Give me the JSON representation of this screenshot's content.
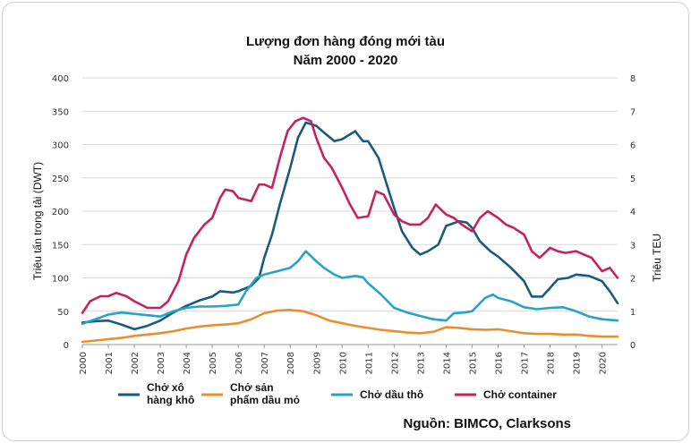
{
  "chart_data": {
    "type": "line",
    "title_line1": "Lượng đơn hàng đóng mới tàu",
    "title_line2": "Năm 2000 - 2020",
    "ylabel_left": "Triệu tấn trọng tải (DWT)",
    "ylabel_right": "Triệu TEU",
    "y_left_range": [
      0,
      400
    ],
    "y_right_range": [
      0,
      8
    ],
    "y_left_ticks": [
      "0",
      "50",
      "100",
      "150",
      "200",
      "250",
      "300",
      "350",
      "400"
    ],
    "y_right_ticks": [
      "0",
      "1",
      "2",
      "3",
      "4",
      "5",
      "6",
      "7",
      "8"
    ],
    "x_range": [
      2000,
      2020.6
    ],
    "x_ticks": [
      "2000",
      "2001",
      "2002",
      "2003",
      "2004",
      "2005",
      "2006",
      "2007",
      "2008",
      "2009",
      "2010",
      "2011",
      "2012",
      "2013",
      "2014",
      "2015",
      "2016",
      "2017",
      "2018",
      "2019",
      "2020"
    ],
    "grid": "horizontal",
    "legend_position": "bottom",
    "source": "Nguồn: BIMCO, Clarksons",
    "series": [
      {
        "name": "Chở xô\nhàng khô",
        "axis": "left",
        "color": "#1a5a7e",
        "points": [
          [
            2000,
            33
          ],
          [
            2000.5,
            35
          ],
          [
            2001,
            36
          ],
          [
            2001.5,
            30
          ],
          [
            2002,
            23
          ],
          [
            2002.5,
            28
          ],
          [
            2003,
            36
          ],
          [
            2003.5,
            48
          ],
          [
            2004,
            58
          ],
          [
            2004.5,
            66
          ],
          [
            2005,
            72
          ],
          [
            2005.3,
            80
          ],
          [
            2005.8,
            78
          ],
          [
            2006,
            80
          ],
          [
            2006.5,
            88
          ],
          [
            2006.8,
            100
          ],
          [
            2007,
            130
          ],
          [
            2007.3,
            165
          ],
          [
            2007.6,
            210
          ],
          [
            2008,
            265
          ],
          [
            2008.3,
            310
          ],
          [
            2008.6,
            333
          ],
          [
            2009,
            328
          ],
          [
            2009.3,
            318
          ],
          [
            2009.7,
            305
          ],
          [
            2010,
            308
          ],
          [
            2010.5,
            320
          ],
          [
            2010.8,
            305
          ],
          [
            2011,
            305
          ],
          [
            2011.4,
            280
          ],
          [
            2011.8,
            230
          ],
          [
            2012,
            205
          ],
          [
            2012.3,
            170
          ],
          [
            2012.7,
            145
          ],
          [
            2013,
            135
          ],
          [
            2013.3,
            140
          ],
          [
            2013.7,
            150
          ],
          [
            2014,
            178
          ],
          [
            2014.5,
            185
          ],
          [
            2014.8,
            183
          ],
          [
            2015,
            175
          ],
          [
            2015.3,
            155
          ],
          [
            2015.7,
            140
          ],
          [
            2016,
            132
          ],
          [
            2016.5,
            115
          ],
          [
            2017,
            95
          ],
          [
            2017.3,
            72
          ],
          [
            2017.7,
            72
          ],
          [
            2018,
            85
          ],
          [
            2018.3,
            98
          ],
          [
            2018.7,
            100
          ],
          [
            2019,
            105
          ],
          [
            2019.5,
            103
          ],
          [
            2020,
            95
          ],
          [
            2020.3,
            80
          ],
          [
            2020.6,
            62
          ]
        ]
      },
      {
        "name": "Chở sản\nphẩm dầu mỏ",
        "axis": "left",
        "color": "#e8902e",
        "points": [
          [
            2000,
            4
          ],
          [
            2000.5,
            6
          ],
          [
            2001,
            8
          ],
          [
            2001.5,
            10
          ],
          [
            2002,
            13
          ],
          [
            2002.5,
            15
          ],
          [
            2003,
            17
          ],
          [
            2003.5,
            20
          ],
          [
            2004,
            24
          ],
          [
            2004.5,
            27
          ],
          [
            2005,
            29
          ],
          [
            2005.5,
            30
          ],
          [
            2006,
            32
          ],
          [
            2006.5,
            38
          ],
          [
            2007,
            47
          ],
          [
            2007.5,
            51
          ],
          [
            2008,
            52
          ],
          [
            2008.5,
            50
          ],
          [
            2009,
            44
          ],
          [
            2009.5,
            36
          ],
          [
            2010,
            32
          ],
          [
            2010.5,
            28
          ],
          [
            2011,
            25
          ],
          [
            2011.5,
            22
          ],
          [
            2012,
            20
          ],
          [
            2012.5,
            18
          ],
          [
            2013,
            17
          ],
          [
            2013.5,
            19
          ],
          [
            2014,
            26
          ],
          [
            2014.5,
            25
          ],
          [
            2015,
            23
          ],
          [
            2015.5,
            22
          ],
          [
            2016,
            23
          ],
          [
            2016.5,
            20
          ],
          [
            2017,
            17
          ],
          [
            2017.5,
            16
          ],
          [
            2018,
            16
          ],
          [
            2018.5,
            15
          ],
          [
            2019,
            15
          ],
          [
            2019.5,
            13
          ],
          [
            2020,
            12
          ],
          [
            2020.6,
            12
          ]
        ]
      },
      {
        "name": "Chở dầu thô",
        "axis": "left",
        "color": "#28a3c6",
        "points": [
          [
            2000,
            31
          ],
          [
            2000.5,
            38
          ],
          [
            2001,
            45
          ],
          [
            2001.5,
            48
          ],
          [
            2002,
            46
          ],
          [
            2002.5,
            44
          ],
          [
            2003,
            42
          ],
          [
            2003.5,
            50
          ],
          [
            2004,
            55
          ],
          [
            2004.5,
            57
          ],
          [
            2005,
            57
          ],
          [
            2005.5,
            58
          ],
          [
            2006,
            60
          ],
          [
            2006.3,
            80
          ],
          [
            2006.7,
            100
          ],
          [
            2007,
            105
          ],
          [
            2007.5,
            110
          ],
          [
            2008,
            115
          ],
          [
            2008.3,
            125
          ],
          [
            2008.6,
            140
          ],
          [
            2009,
            125
          ],
          [
            2009.3,
            115
          ],
          [
            2009.7,
            105
          ],
          [
            2010,
            100
          ],
          [
            2010.5,
            103
          ],
          [
            2010.8,
            101
          ],
          [
            2011,
            92
          ],
          [
            2011.5,
            75
          ],
          [
            2012,
            55
          ],
          [
            2012.5,
            48
          ],
          [
            2013,
            43
          ],
          [
            2013.5,
            38
          ],
          [
            2014,
            36
          ],
          [
            2014.3,
            47
          ],
          [
            2014.7,
            48
          ],
          [
            2015,
            50
          ],
          [
            2015.5,
            70
          ],
          [
            2015.8,
            75
          ],
          [
            2016,
            70
          ],
          [
            2016.5,
            65
          ],
          [
            2017,
            56
          ],
          [
            2017.5,
            53
          ],
          [
            2018,
            55
          ],
          [
            2018.5,
            56
          ],
          [
            2019,
            50
          ],
          [
            2019.5,
            42
          ],
          [
            2020,
            38
          ],
          [
            2020.6,
            36
          ]
        ]
      },
      {
        "name": "Chở container",
        "axis": "right",
        "color": "#c4235f",
        "points": [
          [
            2000,
            0.95
          ],
          [
            2000.3,
            1.3
          ],
          [
            2000.7,
            1.45
          ],
          [
            2001,
            1.45
          ],
          [
            2001.3,
            1.55
          ],
          [
            2001.7,
            1.45
          ],
          [
            2002,
            1.3
          ],
          [
            2002.5,
            1.1
          ],
          [
            2003,
            1.1
          ],
          [
            2003.3,
            1.3
          ],
          [
            2003.7,
            1.9
          ],
          [
            2004,
            2.7
          ],
          [
            2004.3,
            3.2
          ],
          [
            2004.7,
            3.6
          ],
          [
            2005,
            3.8
          ],
          [
            2005.3,
            4.4
          ],
          [
            2005.5,
            4.65
          ],
          [
            2005.8,
            4.6
          ],
          [
            2006,
            4.4
          ],
          [
            2006.5,
            4.3
          ],
          [
            2006.8,
            4.8
          ],
          [
            2007,
            4.8
          ],
          [
            2007.3,
            4.7
          ],
          [
            2007.6,
            5.6
          ],
          [
            2007.9,
            6.4
          ],
          [
            2008.2,
            6.7
          ],
          [
            2008.5,
            6.8
          ],
          [
            2008.8,
            6.7
          ],
          [
            2009,
            6.2
          ],
          [
            2009.3,
            5.6
          ],
          [
            2009.6,
            5.3
          ],
          [
            2010,
            4.7
          ],
          [
            2010.3,
            4.2
          ],
          [
            2010.6,
            3.8
          ],
          [
            2011,
            3.85
          ],
          [
            2011.3,
            4.6
          ],
          [
            2011.6,
            4.5
          ],
          [
            2012,
            3.9
          ],
          [
            2012.3,
            3.7
          ],
          [
            2012.6,
            3.6
          ],
          [
            2013,
            3.6
          ],
          [
            2013.3,
            3.8
          ],
          [
            2013.6,
            4.2
          ],
          [
            2014,
            3.9
          ],
          [
            2014.3,
            3.8
          ],
          [
            2014.6,
            3.6
          ],
          [
            2015,
            3.4
          ],
          [
            2015.3,
            3.8
          ],
          [
            2015.6,
            4.0
          ],
          [
            2016,
            3.8
          ],
          [
            2016.3,
            3.6
          ],
          [
            2016.6,
            3.5
          ],
          [
            2017,
            3.3
          ],
          [
            2017.3,
            2.8
          ],
          [
            2017.6,
            2.6
          ],
          [
            2018,
            2.9
          ],
          [
            2018.3,
            2.8
          ],
          [
            2018.6,
            2.75
          ],
          [
            2019,
            2.8
          ],
          [
            2019.3,
            2.7
          ],
          [
            2019.6,
            2.6
          ],
          [
            2020,
            2.2
          ],
          [
            2020.3,
            2.3
          ],
          [
            2020.6,
            2.0
          ]
        ]
      }
    ]
  }
}
